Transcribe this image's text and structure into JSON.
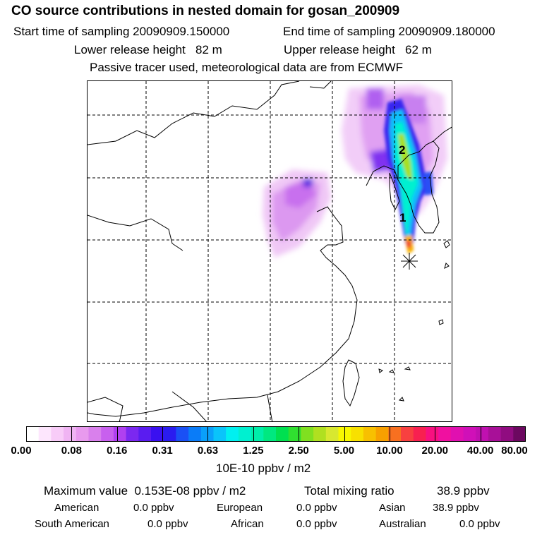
{
  "header": {
    "title": "CO  source contributions in nested domain for gosan_200909",
    "start_label": "Start time of sampling",
    "start_value": "20090909.150000",
    "end_label": "End time of sampling",
    "end_value": "20090909.180000",
    "lower_label": "Lower release height",
    "lower_value": "82 m",
    "upper_label": "Upper release height",
    "upper_value": "62 m",
    "note": "Passive tracer used, meteorological data are from ECMWF"
  },
  "map": {
    "markers": [
      "1",
      "2"
    ],
    "receptor_symbol": "✳"
  },
  "colorbar": {
    "colors": [
      "#ffffff",
      "#fde6fd",
      "#f8ccf8",
      "#f0b4f3",
      "#e89aee",
      "#d980ec",
      "#c860ee",
      "#b040f0",
      "#7b28f0",
      "#5a1cf0",
      "#3a10f0",
      "#2a1cf0",
      "#1a50f5",
      "#0a7cf8",
      "#0aa0fa",
      "#0ac4fa",
      "#00f0f0",
      "#00f0d0",
      "#00eeaa",
      "#00e880",
      "#00e050",
      "#30e030",
      "#80e020",
      "#b0e020",
      "#d8e830",
      "#f8f800",
      "#f8e000",
      "#f8c000",
      "#f8a000",
      "#f87020",
      "#f84040",
      "#f82050",
      "#f81080",
      "#f010a0",
      "#e010b0",
      "#d010b8",
      "#c010b0",
      "#a81098",
      "#900c80",
      "#6c0860"
    ],
    "ticks": [
      "0.00",
      "0.08",
      "0.16",
      "0.31",
      "0.63",
      "1.25",
      "2.50",
      "5.00",
      "10.00",
      "20.00",
      "40.00",
      "80.00"
    ],
    "unit": "10E-10 ppbv / m2"
  },
  "stats": {
    "max_label": "Maximum value",
    "max_value": "0.153E-08 ppbv / m2",
    "total_label": "Total mixing ratio",
    "total_value": "38.9 ppbv",
    "american_label": "American",
    "american_value": "0.0 ppbv",
    "european_label": "European",
    "european_value": "0.0 ppbv",
    "asian_label": "Asian",
    "asian_value": "38.9 ppbv",
    "south_american_label": "South American",
    "south_american_value": "0.0 ppbv",
    "african_label": "African",
    "african_value": "0.0 ppbv",
    "australian_label": "Australian",
    "australian_value": "0.0 ppbv"
  }
}
